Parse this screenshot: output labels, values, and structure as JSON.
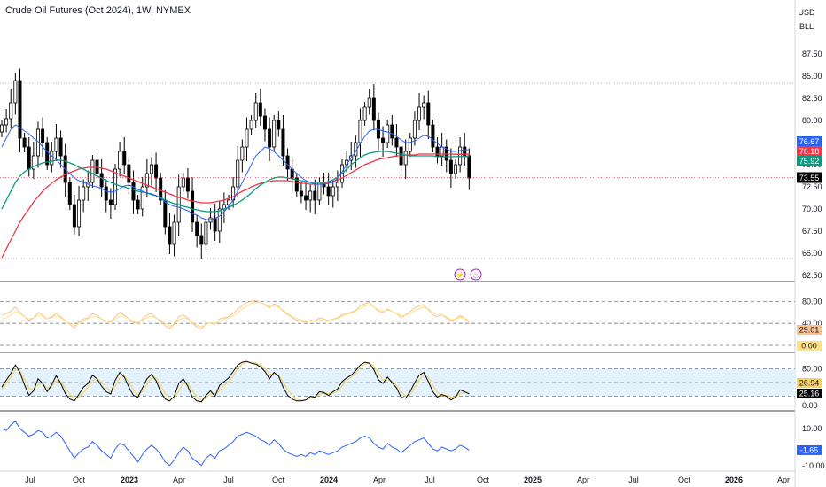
{
  "header": {
    "title": "Crude Oil Futures (Oct 2024), 1W, NYMEX",
    "currency_label": "USD",
    "unit_label": "BLL"
  },
  "colors": {
    "up_candle": "#ffffff",
    "down_candle": "#000000",
    "ma_fast": "#2962ff",
    "ma_mid": "#089981",
    "ma_slow": "#f23645",
    "rsi_line_1": "#f8c291",
    "rsi_line_2": "#ffe082",
    "stoch_k": "#000000",
    "stoch_d": "#f6d365",
    "stoch_band": "#e3f2fd",
    "macd_line": "#2962ff",
    "price_marker": "#000000"
  },
  "icons": {
    "event_1": "lightning-icon",
    "event_2": "dividend-icon"
  },
  "chart_data": [
    {
      "type": "candlestick",
      "title": "Crude Oil Futures (Oct 2024), 1W, NYMEX",
      "ylim": [
        62.5,
        87.5
      ],
      "y_ticks": [
        "87.50",
        "85.00",
        "82.50",
        "80.00",
        "77.50",
        "75.00",
        "72.50",
        "70.00",
        "67.50",
        "65.00",
        "62.50"
      ],
      "last_price": "73.55",
      "ma_labels": [
        {
          "value": "76.67",
          "color": "#2962ff"
        },
        {
          "value": "76.18",
          "color": "#f23645"
        },
        {
          "value": "75.92",
          "color": "#089981"
        }
      ],
      "x_ticks": [
        "Jul",
        "Oct",
        "2023",
        "Apr",
        "Jul",
        "Oct",
        "2024",
        "Apr",
        "Jul",
        "Oct",
        "2025",
        "Apr",
        "Jul",
        "Oct",
        "2026",
        "Apr"
      ],
      "close_series": [
        79.5,
        80.2,
        82.0,
        84.5,
        78.0,
        77.0,
        74.5,
        76.0,
        79.0,
        77.5,
        75.0,
        76.5,
        78.0,
        76.0,
        73.0,
        70.5,
        68.0,
        71.0,
        72.5,
        73.0,
        75.5,
        74.0,
        72.5,
        71.0,
        70.5,
        74.5,
        76.5,
        75.0,
        73.0,
        71.0,
        70.0,
        72.5,
        74.0,
        75.0,
        73.5,
        71.0,
        68.0,
        66.0,
        68.5,
        72.5,
        73.5,
        72.0,
        68.5,
        67.0,
        66.0,
        68.5,
        69.0,
        67.5,
        70.0,
        70.5,
        71.0,
        72.5,
        75.5,
        77.0,
        79.0,
        80.0,
        82.0,
        80.5,
        79.0,
        77.0,
        80.0,
        79.0,
        76.0,
        74.5,
        73.5,
        72.0,
        71.5,
        71.0,
        72.0,
        71.0,
        73.0,
        72.5,
        71.5,
        72.5,
        73.0,
        75.0,
        75.5,
        76.0,
        77.5,
        80.0,
        81.5,
        82.5,
        80.0,
        78.0,
        77.5,
        79.5,
        78.0,
        77.0,
        75.0,
        76.5,
        78.0,
        80.0,
        81.5,
        82.0,
        79.5,
        77.0,
        76.0,
        77.0,
        75.5,
        74.0,
        75.0,
        77.0,
        76.0,
        73.5
      ],
      "ma_fast": [
        77.0,
        78.0,
        79.0,
        79.5,
        79.2,
        78.8,
        78.5,
        78.0,
        77.6,
        77.0,
        76.5,
        76.0,
        75.6,
        75.0,
        74.5,
        74.0,
        73.5,
        73.2,
        73.0,
        72.8,
        72.6,
        72.5,
        72.3,
        72.0,
        71.9,
        72.0,
        72.3,
        72.6,
        72.7,
        72.5,
        72.2,
        72.0,
        71.8,
        71.6,
        71.5,
        71.2,
        70.8,
        70.5,
        70.3,
        70.2,
        70.0,
        69.8,
        69.5,
        69.3,
        69.0,
        68.8,
        68.8,
        68.9,
        69.2,
        69.7,
        70.3,
        71.0,
        72.0,
        73.0,
        74.0,
        75.0,
        76.0,
        76.5,
        77.0,
        76.8,
        76.5,
        76.0,
        75.5,
        75.0,
        74.5,
        74.0,
        73.6,
        73.2,
        73.0,
        72.8,
        72.8,
        72.8,
        72.9,
        73.0,
        73.5,
        74.2,
        75.0,
        75.8,
        76.5,
        77.4,
        78.2,
        78.8,
        79.0,
        79.0,
        78.8,
        78.7,
        78.5,
        78.2,
        77.8,
        77.5,
        77.5,
        77.7,
        78.0,
        78.3,
        78.2,
        77.8,
        77.4,
        77.0,
        76.8,
        76.5,
        76.5,
        76.6,
        76.7,
        76.67
      ],
      "ma_mid": [
        70.0,
        71.0,
        72.0,
        73.0,
        73.7,
        74.2,
        74.5,
        74.8,
        75.0,
        75.2,
        75.3,
        75.4,
        75.5,
        75.5,
        75.4,
        75.2,
        75.0,
        74.7,
        74.5,
        74.2,
        74.0,
        73.7,
        73.5,
        73.2,
        73.0,
        72.8,
        72.6,
        72.5,
        72.3,
        72.2,
        72.0,
        71.9,
        71.8,
        71.7,
        71.5,
        71.3,
        71.0,
        70.8,
        70.6,
        70.5,
        70.3,
        70.2,
        70.0,
        69.9,
        69.8,
        69.7,
        69.7,
        69.7,
        69.8,
        70.0,
        70.2,
        70.4,
        70.7,
        71.0,
        71.4,
        71.8,
        72.3,
        72.7,
        73.0,
        73.3,
        73.5,
        73.6,
        73.6,
        73.5,
        73.4,
        73.3,
        73.2,
        73.1,
        73.0,
        73.0,
        73.0,
        73.0,
        73.1,
        73.3,
        73.6,
        74.0,
        74.5,
        75.0,
        75.4,
        75.8,
        76.1,
        76.3,
        76.4,
        76.5,
        76.5,
        76.5,
        76.4,
        76.3,
        76.2,
        76.1,
        76.0,
        76.0,
        76.0,
        76.0,
        76.0,
        76.0,
        75.9,
        75.9,
        75.9,
        75.9,
        75.92,
        75.92,
        75.92,
        75.92
      ],
      "ma_slow": [
        64.5,
        65.5,
        66.5,
        67.5,
        68.5,
        69.3,
        70.0,
        70.8,
        71.4,
        72.0,
        72.5,
        72.9,
        73.3,
        73.6,
        73.9,
        74.1,
        74.3,
        74.5,
        74.6,
        74.7,
        74.7,
        74.7,
        74.6,
        74.5,
        74.3,
        74.1,
        73.9,
        73.7,
        73.5,
        73.3,
        73.1,
        72.9,
        72.7,
        72.5,
        72.3,
        72.1,
        71.9,
        71.7,
        71.5,
        71.3,
        71.2,
        71.0,
        70.9,
        70.8,
        70.7,
        70.7,
        70.7,
        70.8,
        70.9,
        71.0,
        71.2,
        71.4,
        71.7,
        72.0,
        72.2,
        72.5,
        72.7,
        72.9,
        73.0,
        73.1,
        73.2,
        73.2,
        73.2,
        73.2,
        73.1,
        73.0,
        72.9,
        72.9,
        72.8,
        72.8,
        72.8,
        72.9,
        73.0,
        73.1,
        73.3,
        73.5,
        73.8,
        74.1,
        74.4,
        74.7,
        75.0,
        75.2,
        75.4,
        75.6,
        75.7,
        75.8,
        75.9,
        76.0,
        76.0,
        76.1,
        76.1,
        76.1,
        76.2,
        76.2,
        76.2,
        76.2,
        76.2,
        76.2,
        76.2,
        76.2,
        76.18,
        76.18,
        76.18,
        76.18
      ]
    },
    {
      "type": "line",
      "name": "RSI panel",
      "ylim": [
        0,
        100
      ],
      "y_ticks": [
        "80.00",
        "40.00",
        "0.00"
      ],
      "labels": [
        {
          "value": "29.01",
          "color": "#f8c291"
        },
        {
          "value": "0.00",
          "color": "#ffe082"
        }
      ],
      "line_1": [
        55,
        58,
        62,
        70,
        60,
        52,
        45,
        50,
        60,
        55,
        48,
        52,
        58,
        52,
        45,
        38,
        32,
        42,
        48,
        50,
        58,
        55,
        48,
        44,
        42,
        52,
        60,
        55,
        48,
        42,
        40,
        48,
        55,
        58,
        50,
        44,
        36,
        30,
        38,
        52,
        55,
        50,
        40,
        34,
        30,
        38,
        42,
        38,
        48,
        50,
        52,
        58,
        66,
        72,
        78,
        80,
        82,
        78,
        74,
        68,
        76,
        72,
        62,
        56,
        50,
        46,
        44,
        42,
        46,
        44,
        50,
        48,
        44,
        48,
        50,
        56,
        58,
        60,
        64,
        72,
        76,
        78,
        70,
        62,
        60,
        66,
        62,
        58,
        50,
        56,
        62,
        68,
        72,
        74,
        64,
        56,
        52,
        56,
        50,
        44,
        48,
        54,
        50,
        40
      ],
      "line_2": [
        48,
        50,
        55,
        62,
        58,
        52,
        48,
        50,
        55,
        52,
        48,
        50,
        54,
        50,
        44,
        40,
        36,
        40,
        45,
        48,
        52,
        52,
        48,
        44,
        43,
        48,
        54,
        52,
        48,
        44,
        42,
        46,
        50,
        53,
        50,
        46,
        40,
        35,
        38,
        46,
        50,
        48,
        42,
        37,
        34,
        38,
        42,
        40,
        44,
        48,
        50,
        54,
        60,
        66,
        72,
        76,
        78,
        78,
        75,
        70,
        72,
        70,
        64,
        58,
        53,
        49,
        46,
        44,
        45,
        44,
        47,
        47,
        45,
        47,
        49,
        53,
        56,
        58,
        62,
        68,
        72,
        74,
        70,
        65,
        62,
        64,
        62,
        58,
        54,
        55,
        58,
        63,
        67,
        70,
        66,
        60,
        56,
        56,
        52,
        47,
        48,
        51,
        50,
        44
      ]
    },
    {
      "type": "line",
      "name": "Stochastic panel",
      "ylim": [
        0,
        100
      ],
      "y_ticks": [
        "80.00",
        "0.00"
      ],
      "labels": [
        {
          "value": "26.94",
          "color": "#f6d365"
        },
        {
          "value": "25.16",
          "color": "#000000"
        }
      ],
      "k_series": [
        40,
        55,
        70,
        88,
        72,
        45,
        22,
        32,
        58,
        48,
        30,
        45,
        65,
        48,
        26,
        14,
        10,
        24,
        40,
        48,
        66,
        58,
        42,
        30,
        25,
        55,
        72,
        62,
        40,
        22,
        18,
        38,
        58,
        68,
        54,
        30,
        14,
        10,
        20,
        48,
        58,
        42,
        18,
        10,
        8,
        22,
        32,
        20,
        44,
        52,
        60,
        74,
        88,
        94,
        96,
        92,
        90,
        84,
        74,
        58,
        72,
        64,
        40,
        22,
        14,
        10,
        10,
        12,
        20,
        18,
        30,
        28,
        22,
        30,
        36,
        52,
        60,
        66,
        76,
        88,
        94,
        92,
        78,
        56,
        48,
        62,
        50,
        38,
        18,
        16,
        30,
        50,
        66,
        72,
        52,
        30,
        18,
        24,
        20,
        12,
        18,
        34,
        30,
        25.16
      ],
      "d_series": [
        35,
        48,
        62,
        78,
        75,
        58,
        38,
        33,
        45,
        48,
        38,
        41,
        54,
        52,
        38,
        24,
        16,
        18,
        28,
        40,
        54,
        58,
        52,
        40,
        30,
        42,
        60,
        64,
        52,
        34,
        24,
        30,
        46,
        60,
        60,
        44,
        26,
        16,
        16,
        32,
        48,
        48,
        32,
        18,
        12,
        16,
        26,
        24,
        32,
        44,
        52,
        64,
        80,
        90,
        94,
        94,
        92,
        88,
        80,
        68,
        68,
        66,
        52,
        34,
        22,
        14,
        12,
        12,
        16,
        18,
        24,
        26,
        26,
        27,
        32,
        42,
        54,
        62,
        70,
        82,
        90,
        92,
        86,
        70,
        56,
        56,
        54,
        44,
        30,
        20,
        24,
        38,
        56,
        66,
        62,
        44,
        28,
        22,
        22,
        18,
        18,
        26,
        30,
        26.94
      ]
    },
    {
      "type": "line",
      "name": "Oscillator panel",
      "ylim": [
        -10,
        10
      ],
      "y_ticks": [
        "10.00",
        "-10.00"
      ],
      "labels": [
        {
          "value": "-1.65",
          "color": "#2962ff"
        }
      ],
      "series": [
        10,
        9,
        12,
        14,
        10,
        8,
        6,
        7,
        9,
        8,
        5,
        6,
        8,
        6,
        2,
        -2,
        -6,
        -3,
        -1,
        0,
        3,
        1,
        -2,
        -4,
        -6,
        -1,
        2,
        1,
        -2,
        -5,
        -8,
        -4,
        -1,
        1,
        -1,
        -4,
        -8,
        -10,
        -7,
        -3,
        0,
        -2,
        -6,
        -8,
        -10,
        -6,
        -4,
        -6,
        -2,
        -1,
        1,
        3,
        6,
        7,
        8,
        7,
        6,
        4,
        3,
        1,
        4,
        2,
        -1,
        -3,
        -4,
        -5,
        -4,
        -5,
        -3,
        -4,
        -2,
        -3,
        -4,
        -3,
        -2,
        0,
        1,
        2,
        3,
        5,
        6,
        5,
        2,
        0,
        -1,
        2,
        0,
        -1,
        -3,
        -1,
        1,
        3,
        4,
        5,
        2,
        -1,
        -2,
        0,
        -1,
        -2,
        -1,
        1,
        0,
        -1.65
      ]
    }
  ]
}
